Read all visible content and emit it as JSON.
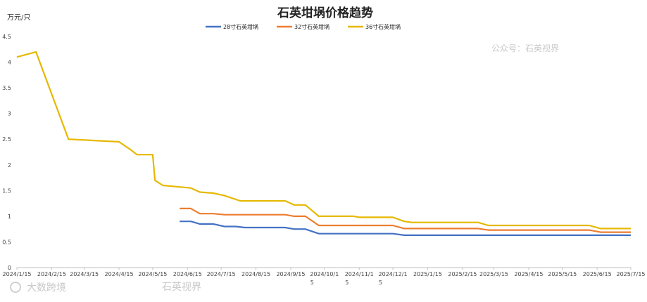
{
  "chart_data": {
    "type": "line",
    "title": "石英坩埚价格趋势",
    "ylabel": "万元/只",
    "ylim": [
      0,
      4.5
    ],
    "yticks": [
      "0",
      "0.5",
      "1",
      "1.5",
      "2",
      "2.5",
      "3",
      "3.5",
      "4",
      "4.5"
    ],
    "xlim": [
      "2024-01-15",
      "2025-07-15"
    ],
    "xticks": [
      {
        "date": "2024-01-15",
        "lines": [
          "2024/1/15"
        ]
      },
      {
        "date": "2024-02-15",
        "lines": [
          "2024/2/15"
        ]
      },
      {
        "date": "2024-03-15",
        "lines": [
          "2024/3/15"
        ]
      },
      {
        "date": "2024-04-15",
        "lines": [
          "2024/4/15"
        ]
      },
      {
        "date": "2024-05-15",
        "lines": [
          "2024/5/15"
        ]
      },
      {
        "date": "2024-06-15",
        "lines": [
          "2024/6/15"
        ]
      },
      {
        "date": "2024-07-15",
        "lines": [
          "2024/7/15"
        ]
      },
      {
        "date": "2024-08-15",
        "lines": [
          "2024/8/15"
        ]
      },
      {
        "date": "2024-09-15",
        "lines": [
          "2024/9/15"
        ]
      },
      {
        "date": "2024-10-15",
        "lines": [
          "2024/10/1",
          "5"
        ]
      },
      {
        "date": "2024-11-15",
        "lines": [
          "2024/11/1",
          "5"
        ]
      },
      {
        "date": "2024-12-15",
        "lines": [
          "2024/12/1",
          "5"
        ]
      },
      {
        "date": "2025-01-15",
        "lines": [
          "2025/1/15"
        ]
      },
      {
        "date": "2025-02-15",
        "lines": [
          "2025/2/15"
        ]
      },
      {
        "date": "2025-03-15",
        "lines": [
          "2025/3/15"
        ]
      },
      {
        "date": "2025-04-15",
        "lines": [
          "2025/4/15"
        ]
      },
      {
        "date": "2025-05-15",
        "lines": [
          "2025/5/15"
        ]
      },
      {
        "date": "2025-06-15",
        "lines": [
          "2025/6/15"
        ]
      },
      {
        "date": "2025-07-15",
        "lines": [
          "2025/7/15"
        ]
      }
    ],
    "grid": false,
    "legend_position": "top-center",
    "series": [
      {
        "name": "28寸石英坩埚",
        "color": "#4472C4",
        "points": [
          [
            "2024-06-08",
            0.9
          ],
          [
            "2024-06-18",
            0.9
          ],
          [
            "2024-06-26",
            0.85
          ],
          [
            "2024-07-08",
            0.85
          ],
          [
            "2024-07-18",
            0.8
          ],
          [
            "2024-07-28",
            0.8
          ],
          [
            "2024-08-05",
            0.78
          ],
          [
            "2024-09-10",
            0.78
          ],
          [
            "2024-09-18",
            0.75
          ],
          [
            "2024-09-28",
            0.75
          ],
          [
            "2024-10-10",
            0.66
          ],
          [
            "2024-12-15",
            0.66
          ],
          [
            "2024-12-25",
            0.63
          ],
          [
            "2025-07-15",
            0.63
          ]
        ]
      },
      {
        "name": "32寸石英坩埚",
        "color": "#ED7D31",
        "points": [
          [
            "2024-06-08",
            1.15
          ],
          [
            "2024-06-18",
            1.15
          ],
          [
            "2024-06-26",
            1.05
          ],
          [
            "2024-07-08",
            1.05
          ],
          [
            "2024-07-18",
            1.03
          ],
          [
            "2024-09-10",
            1.03
          ],
          [
            "2024-09-18",
            1.0
          ],
          [
            "2024-09-28",
            1.0
          ],
          [
            "2024-10-10",
            0.82
          ],
          [
            "2024-12-15",
            0.82
          ],
          [
            "2024-12-25",
            0.76
          ],
          [
            "2025-03-01",
            0.76
          ],
          [
            "2025-03-10",
            0.73
          ],
          [
            "2025-06-08",
            0.73
          ],
          [
            "2025-06-18",
            0.69
          ],
          [
            "2025-07-15",
            0.69
          ]
        ]
      },
      {
        "name": "36寸石英坩埚",
        "color": "#E6B800",
        "points": [
          [
            "2024-01-15",
            4.1
          ],
          [
            "2024-02-01",
            4.2
          ],
          [
            "2024-03-01",
            2.5
          ],
          [
            "2024-04-15",
            2.45
          ],
          [
            "2024-04-25",
            2.3
          ],
          [
            "2024-05-01",
            2.2
          ],
          [
            "2024-05-15",
            2.2
          ],
          [
            "2024-05-17",
            1.7
          ],
          [
            "2024-05-24",
            1.6
          ],
          [
            "2024-06-08",
            1.57
          ],
          [
            "2024-06-18",
            1.55
          ],
          [
            "2024-06-26",
            1.47
          ],
          [
            "2024-07-08",
            1.45
          ],
          [
            "2024-07-18",
            1.4
          ],
          [
            "2024-08-01",
            1.3
          ],
          [
            "2024-09-10",
            1.3
          ],
          [
            "2024-09-18",
            1.22
          ],
          [
            "2024-09-28",
            1.22
          ],
          [
            "2024-10-10",
            1.0
          ],
          [
            "2024-11-10",
            1.0
          ],
          [
            "2024-11-15",
            0.98
          ],
          [
            "2024-12-15",
            0.98
          ],
          [
            "2024-12-25",
            0.9
          ],
          [
            "2025-01-01",
            0.88
          ],
          [
            "2025-03-01",
            0.88
          ],
          [
            "2025-03-10",
            0.82
          ],
          [
            "2025-06-08",
            0.82
          ],
          [
            "2025-06-18",
            0.76
          ],
          [
            "2025-07-15",
            0.76
          ]
        ]
      }
    ]
  },
  "watermarks": {
    "top_right": "公众号：石英视界",
    "bottom_left": "大数跨境",
    "bottom_center": "石英视界"
  }
}
